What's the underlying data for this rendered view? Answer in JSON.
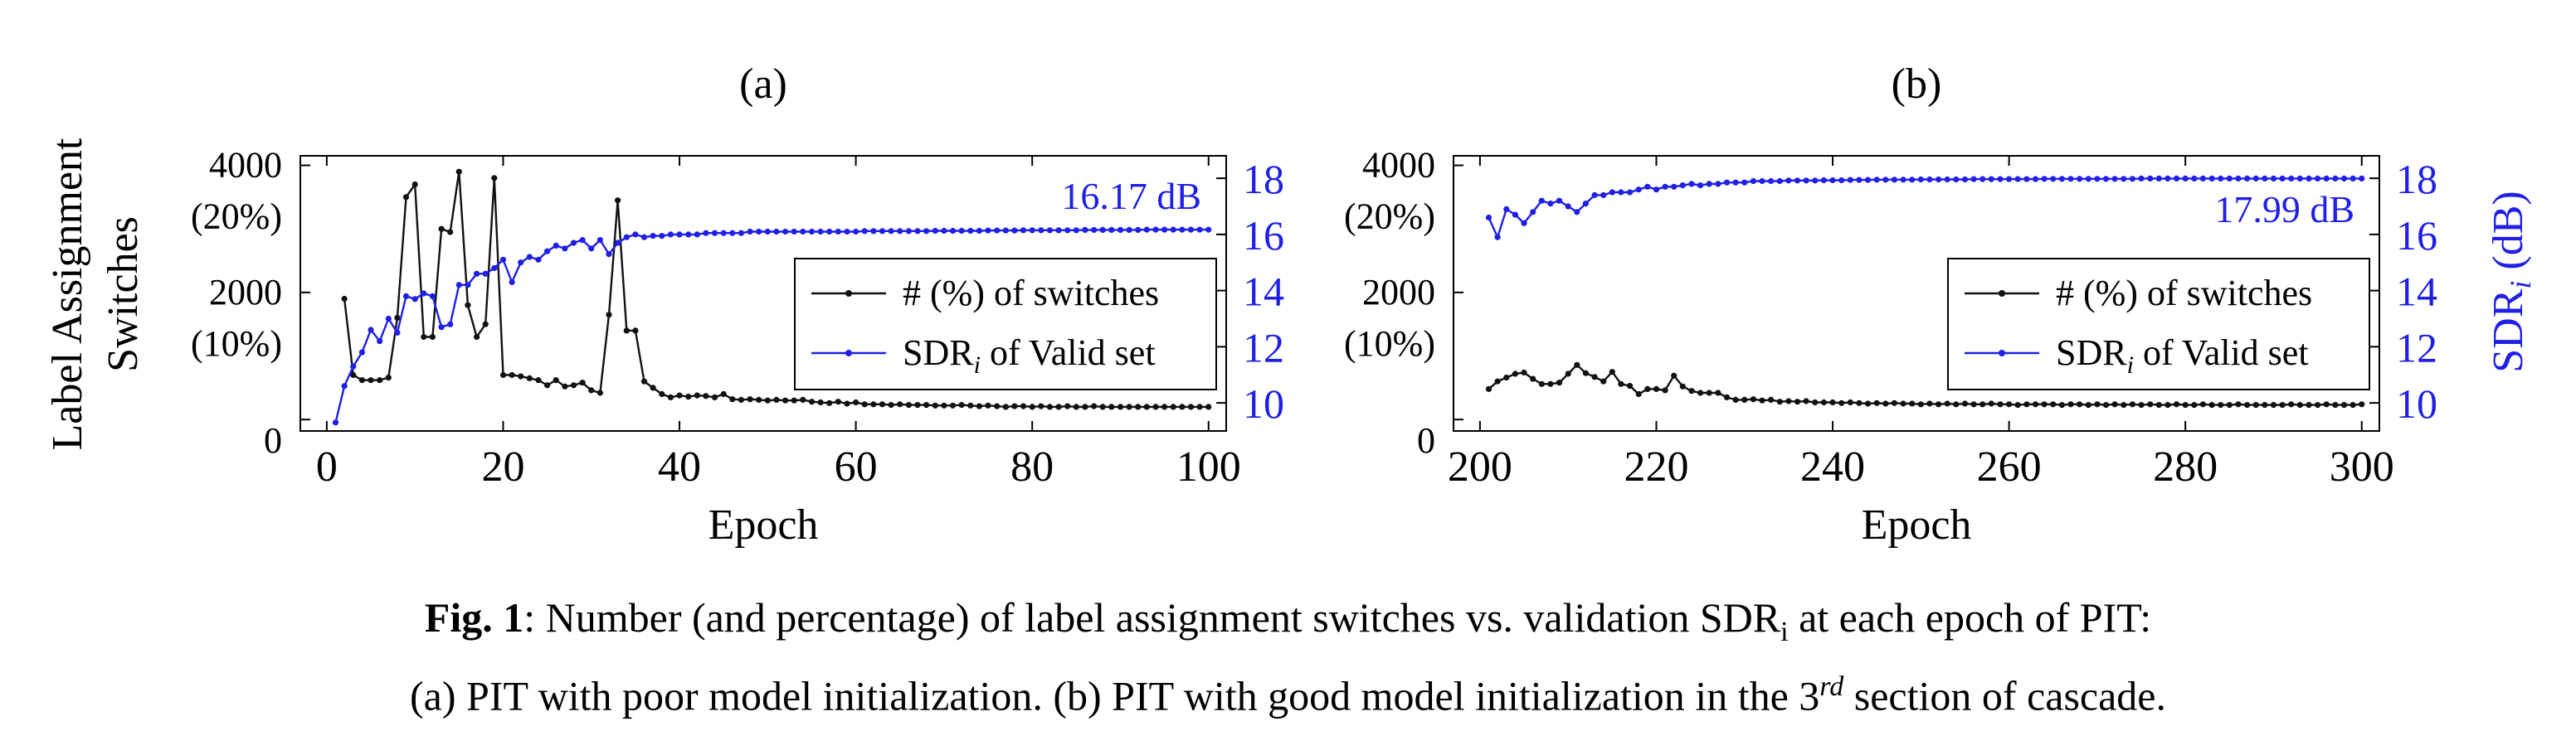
{
  "figure": {
    "ylabel_left_line1": "Label Assignment",
    "ylabel_left_line2": "Switches",
    "ylabel_right": "SDR",
    "ylabel_right_sub": "i",
    "ylabel_right_unit": " (dB)",
    "left_ticks": [
      {
        "value": 4000,
        "label": "4000",
        "pct": "(20%)"
      },
      {
        "value": 2000,
        "label": "2000",
        "pct": "(10%)"
      },
      {
        "value": 0,
        "label": "0",
        "pct": ""
      }
    ],
    "right_ticks": [
      "10",
      "12",
      "14",
      "16",
      "18"
    ],
    "colors": {
      "switches": "#111111",
      "sdr": "#1f1fe6"
    }
  },
  "caption": {
    "fig_label": "Fig. 1",
    "line1_rest": ": Number (and percentage) of label assignment switches vs. validation SDR",
    "line1_sub": "i",
    "line1_end": " at each epoch of PIT:",
    "line2_start": "(a) PIT with poor model initialization. (b) PIT with good model initialization in the 3",
    "line2_sup": "rd",
    "line2_end": " section of cascade."
  },
  "chart_data": [
    {
      "type": "line",
      "title": "(a)",
      "xlabel": "Epoch",
      "ylabel": "Label Assignment Switches",
      "y2label": "SDR_i (dB)",
      "xlim": [
        -3,
        102
      ],
      "ylim": [
        -180,
        4150
      ],
      "y2lim": [
        9.0,
        18.8
      ],
      "xticks": [
        0,
        20,
        40,
        60,
        80,
        100
      ],
      "annotation": "16.17 dB",
      "legend": "center-right",
      "legend_entries": [
        "# (%) of switches",
        "SDR",
        "i",
        " of Valid set"
      ],
      "series": [
        {
          "name": "# (%) of switches",
          "axis": "left",
          "x": [
            2,
            3,
            4,
            5,
            6,
            7,
            8,
            9,
            10,
            11,
            12,
            13,
            14,
            15,
            16,
            17,
            18,
            19,
            20,
            21,
            22,
            23,
            24,
            25,
            26,
            27,
            28,
            29,
            30,
            31,
            32,
            33,
            34,
            35,
            36,
            37,
            38,
            39,
            40,
            41,
            42,
            43,
            44,
            45,
            46,
            47,
            48,
            49,
            50,
            51,
            52,
            53,
            54,
            55,
            56,
            57,
            58,
            59,
            60,
            61,
            62,
            63,
            64,
            65,
            66,
            67,
            68,
            69,
            70,
            71,
            72,
            73,
            74,
            75,
            76,
            77,
            78,
            79,
            80,
            81,
            82,
            83,
            84,
            85,
            86,
            87,
            88,
            89,
            90,
            91,
            92,
            93,
            94,
            95,
            96,
            97,
            98,
            99,
            100
          ],
          "values": [
            1900,
            700,
            620,
            620,
            620,
            660,
            1600,
            3500,
            3700,
            1300,
            1300,
            3000,
            2950,
            3900,
            1800,
            1300,
            1500,
            3800,
            700,
            700,
            680,
            650,
            620,
            540,
            620,
            520,
            540,
            580,
            460,
            420,
            1650,
            3450,
            1400,
            1400,
            600,
            500,
            400,
            350,
            380,
            360,
            380,
            370,
            350,
            400,
            320,
            310,
            320,
            310,
            300,
            310,
            300,
            300,
            310,
            280,
            270,
            260,
            280,
            250,
            270,
            240,
            240,
            240,
            230,
            240,
            230,
            230,
            230,
            220,
            220,
            220,
            230,
            220,
            210,
            220,
            210,
            200,
            210,
            210,
            200,
            210,
            200,
            200,
            210,
            200,
            200,
            210,
            200,
            200,
            200,
            200,
            200,
            200,
            200,
            200,
            200,
            200,
            200,
            200,
            200
          ]
        },
        {
          "name": "SDR_i of Valid set",
          "axis": "right",
          "x": [
            1,
            2,
            3,
            4,
            5,
            6,
            7,
            8,
            9,
            10,
            11,
            12,
            13,
            14,
            15,
            16,
            17,
            18,
            19,
            20,
            21,
            22,
            23,
            24,
            25,
            26,
            27,
            28,
            29,
            30,
            31,
            32,
            33,
            34,
            35,
            36,
            37,
            38,
            39,
            40,
            41,
            42,
            43,
            44,
            45,
            46,
            47,
            48,
            49,
            50,
            51,
            52,
            53,
            54,
            55,
            56,
            57,
            58,
            59,
            60,
            61,
            62,
            63,
            64,
            65,
            66,
            67,
            68,
            69,
            70,
            71,
            72,
            73,
            74,
            75,
            76,
            77,
            78,
            79,
            80,
            81,
            82,
            83,
            84,
            85,
            86,
            87,
            88,
            89,
            90,
            91,
            92,
            93,
            94,
            95,
            96,
            97,
            98,
            99,
            100
          ],
          "values": [
            9.3,
            10.6,
            11.3,
            11.8,
            12.6,
            12.2,
            13.0,
            12.5,
            13.8,
            13.7,
            13.9,
            13.8,
            12.7,
            12.8,
            14.2,
            14.2,
            14.6,
            14.6,
            14.8,
            15.1,
            14.3,
            15.0,
            15.2,
            15.1,
            15.4,
            15.6,
            15.5,
            15.7,
            15.8,
            15.5,
            15.8,
            15.3,
            15.7,
            15.9,
            16.0,
            15.9,
            15.95,
            15.95,
            16.0,
            16.0,
            16.0,
            16.0,
            16.05,
            16.05,
            16.05,
            16.05,
            16.05,
            16.1,
            16.1,
            16.1,
            16.1,
            16.1,
            16.1,
            16.1,
            16.1,
            16.1,
            16.1,
            16.1,
            16.1,
            16.1,
            16.12,
            16.12,
            16.12,
            16.12,
            16.12,
            16.12,
            16.12,
            16.12,
            16.13,
            16.13,
            16.13,
            16.13,
            16.13,
            16.13,
            16.14,
            16.14,
            16.14,
            16.14,
            16.15,
            16.15,
            16.15,
            16.15,
            16.15,
            16.15,
            16.15,
            16.16,
            16.16,
            16.16,
            16.16,
            16.16,
            16.16,
            16.16,
            16.17,
            16.17,
            16.17,
            16.17,
            16.17,
            16.17,
            16.17,
            16.17
          ]
        }
      ]
    },
    {
      "type": "line",
      "title": "(b)",
      "xlabel": "Epoch",
      "ylabel": "Label Assignment Switches",
      "y2label": "SDR_i (dB)",
      "xlim": [
        197,
        302
      ],
      "ylim": [
        -180,
        4150
      ],
      "y2lim": [
        9.0,
        18.8
      ],
      "xticks": [
        200,
        220,
        240,
        260,
        280,
        300
      ],
      "annotation": "17.99 dB",
      "legend": "center-right",
      "legend_entries": [
        "# (%) of switches",
        "SDR",
        "i",
        " of Valid set"
      ],
      "series": [
        {
          "name": "# (%) of switches",
          "axis": "left",
          "x": [
            201,
            202,
            203,
            204,
            205,
            206,
            207,
            208,
            209,
            210,
            211,
            212,
            213,
            214,
            215,
            216,
            217,
            218,
            219,
            220,
            221,
            222,
            223,
            224,
            225,
            226,
            227,
            228,
            229,
            230,
            231,
            232,
            233,
            234,
            235,
            236,
            237,
            238,
            239,
            240,
            241,
            242,
            243,
            244,
            245,
            246,
            247,
            248,
            249,
            250,
            251,
            252,
            253,
            254,
            255,
            256,
            257,
            258,
            259,
            260,
            261,
            262,
            263,
            264,
            265,
            266,
            267,
            268,
            269,
            270,
            271,
            272,
            273,
            274,
            275,
            276,
            277,
            278,
            279,
            280,
            281,
            282,
            283,
            284,
            285,
            286,
            287,
            288,
            289,
            290,
            291,
            292,
            293,
            294,
            295,
            296,
            297,
            298,
            299,
            300
          ],
          "values": [
            480,
            600,
            660,
            720,
            740,
            640,
            560,
            560,
            580,
            720,
            860,
            730,
            670,
            600,
            750,
            560,
            530,
            400,
            480,
            480,
            460,
            690,
            520,
            450,
            420,
            420,
            420,
            350,
            310,
            310,
            320,
            300,
            310,
            280,
            290,
            280,
            290,
            270,
            270,
            270,
            260,
            270,
            260,
            250,
            260,
            250,
            260,
            250,
            250,
            240,
            250,
            240,
            250,
            240,
            250,
            240,
            240,
            250,
            240,
            240,
            230,
            240,
            240,
            240,
            240,
            230,
            240,
            240,
            230,
            240,
            230,
            240,
            230,
            240,
            230,
            240,
            230,
            230,
            240,
            230,
            230,
            240,
            230,
            230,
            230,
            240,
            230,
            230,
            230,
            230,
            230,
            240,
            230,
            230,
            230,
            240,
            230,
            230,
            230,
            240
          ]
        },
        {
          "name": "SDR_i of Valid set",
          "axis": "right",
          "x": [
            201,
            202,
            203,
            204,
            205,
            206,
            207,
            208,
            209,
            210,
            211,
            212,
            213,
            214,
            215,
            216,
            217,
            218,
            219,
            220,
            221,
            222,
            223,
            224,
            225,
            226,
            227,
            228,
            229,
            230,
            231,
            232,
            233,
            234,
            235,
            236,
            237,
            238,
            239,
            240,
            241,
            242,
            243,
            244,
            245,
            246,
            247,
            248,
            249,
            250,
            251,
            252,
            253,
            254,
            255,
            256,
            257,
            258,
            259,
            260,
            261,
            262,
            263,
            264,
            265,
            266,
            267,
            268,
            269,
            270,
            271,
            272,
            273,
            274,
            275,
            276,
            277,
            278,
            279,
            280,
            281,
            282,
            283,
            284,
            285,
            286,
            287,
            288,
            289,
            290,
            291,
            292,
            293,
            294,
            295,
            296,
            297,
            298,
            299,
            300
          ],
          "values": [
            16.6,
            15.9,
            16.9,
            16.7,
            16.4,
            16.8,
            17.2,
            17.1,
            17.2,
            17.0,
            16.8,
            17.1,
            17.4,
            17.4,
            17.5,
            17.5,
            17.5,
            17.6,
            17.7,
            17.6,
            17.7,
            17.7,
            17.75,
            17.8,
            17.75,
            17.8,
            17.8,
            17.85,
            17.85,
            17.85,
            17.9,
            17.9,
            17.9,
            17.9,
            17.92,
            17.92,
            17.92,
            17.92,
            17.93,
            17.93,
            17.93,
            17.94,
            17.94,
            17.94,
            17.95,
            17.95,
            17.95,
            17.95,
            17.95,
            17.96,
            17.96,
            17.96,
            17.96,
            17.96,
            17.96,
            17.97,
            17.97,
            17.97,
            17.97,
            17.97,
            17.97,
            17.97,
            17.97,
            17.98,
            17.98,
            17.98,
            17.98,
            17.98,
            17.98,
            17.98,
            17.98,
            17.98,
            17.98,
            17.98,
            17.99,
            17.99,
            17.99,
            17.99,
            17.99,
            17.99,
            17.99,
            17.99,
            17.99,
            17.99,
            17.99,
            17.99,
            17.99,
            17.99,
            17.99,
            17.99,
            17.99,
            17.99,
            17.99,
            17.99,
            17.99,
            17.99,
            17.99,
            17.99,
            17.99,
            17.99
          ]
        }
      ]
    }
  ]
}
